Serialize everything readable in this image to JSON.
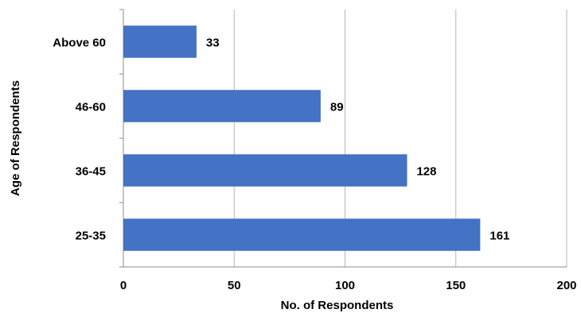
{
  "chart_data": {
    "type": "bar",
    "orientation": "horizontal",
    "categories": [
      "Above 60",
      "46-60",
      "36-45",
      "25-35"
    ],
    "values": [
      33,
      89,
      128,
      161
    ],
    "data_labels": [
      "33",
      "89",
      "128",
      "161"
    ],
    "xlabel": "No. of Respondents",
    "ylabel": "Age of Respondents",
    "xlim": [
      0,
      200
    ],
    "x_ticks": [
      "0",
      "50",
      "100",
      "150",
      "200"
    ],
    "grid": "vertical",
    "legend": "none",
    "bar_color": "#4472C4"
  }
}
